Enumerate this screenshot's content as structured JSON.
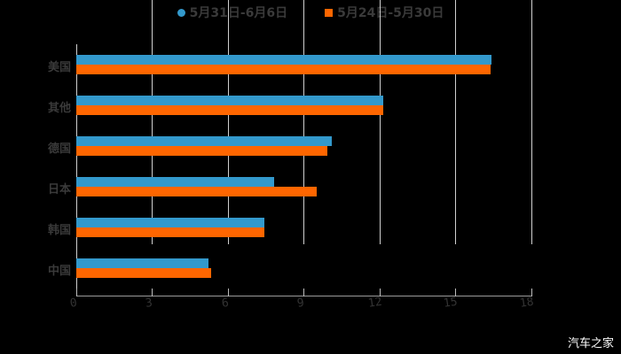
{
  "chart_data": {
    "type": "bar",
    "orientation": "horizontal",
    "title": "",
    "categories": [
      "美国",
      "其他",
      "德国",
      "日本",
      "韩国",
      "中国"
    ],
    "series": [
      {
        "name": "5月31日-6月6日",
        "color": "#3399CC",
        "values": [
          16.42,
          12.14,
          10.1,
          7.82,
          7.44,
          5.23
        ]
      },
      {
        "name": "5月24日-5月30日",
        "color": "#FF6600",
        "values": [
          16.39,
          12.14,
          9.93,
          9.51,
          7.44,
          5.33
        ]
      }
    ],
    "xlabel": "",
    "ylabel": "",
    "xlim": [
      0,
      18
    ],
    "xticks": [
      "0",
      "3",
      "6",
      "9",
      "12",
      "15",
      "18"
    ],
    "grid": true,
    "legend_position": "top"
  },
  "legend": {
    "series0": "5月31日-6月6日",
    "series1": "5月24日-5月30日"
  },
  "labels": {
    "c0": "美国",
    "c1": "其他",
    "c2": "德国",
    "c3": "日本",
    "c4": "韩国",
    "c5": "中国"
  },
  "ticks": {
    "t0": "0",
    "t1": "3",
    "t2": "6",
    "t3": "9",
    "t4": "12",
    "t5": "15",
    "t6": "18"
  },
  "watermark": "汽车之家"
}
